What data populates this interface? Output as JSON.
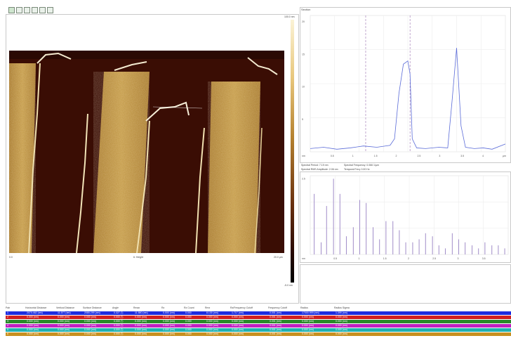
{
  "image_panel": {
    "axis_left": "0.0",
    "axis_center": "6: Height",
    "axis_right": "20.0 µm",
    "scale_top": "100.0 nm",
    "scale_bottom": "-5.0 nm"
  },
  "section_panel": {
    "title": "Section",
    "y_ticks": [
      "20",
      "15",
      "10",
      "5"
    ],
    "x_unit": "nm",
    "x_ticks": [
      "0.5",
      "1",
      "1.5",
      "2",
      "2.5",
      "3",
      "3.5",
      "4"
    ],
    "x_end": "µm"
  },
  "spectral_info": {
    "period": "Spectral Period: 7.19 nm",
    "rms": "Spectral RMS Amplitude: 2.06 nm",
    "frequency": "Spectral Frequency: 0.066 1/µm",
    "temporal": "Temporal Freq: 0.00 Hz"
  },
  "spectrum_panel": {
    "y_top": "2.5",
    "x_unit": "nm",
    "x_ticks": [
      "0.5",
      "1",
      "1.5",
      "2",
      "2.5",
      "3",
      "3.5"
    ]
  },
  "table": {
    "headers": [
      "Pair",
      "Horizontal Distance",
      "Vertical Distance",
      "Surface Distance",
      "Angle",
      "Rmax",
      "Rz",
      "Rz Count",
      "Rmx",
      "Rz/Frequency Cutoff",
      "Frequency Cutoff",
      "Radius",
      "Radius Sigma"
    ],
    "rows": [
      {
        "color": "#1c2ce0",
        "cells": [
          "1",
          "2070.462 (nm)",
          "11.577 (nm)",
          "2085.299 (nm)",
          "0.327 (°)",
          "11.580 (nm)",
          "0.000 (nm)",
          "0.000",
          "8.130 (nm)",
          "1.717 (nm)",
          "0.001 (nm)",
          "17000.999 (nm)",
          "1.399 (nm)"
        ]
      },
      {
        "color": "#d02020",
        "cells": [
          "2",
          "0.000 (nm)",
          "0.000 (nm)",
          "0.000 (nm)",
          "0.000 (°)",
          "0.000 (nm)",
          "0.000 (nm)",
          "0.000",
          "0.000 (nm)",
          "0.000 (nm)",
          "0.001 (nm)",
          "0.000 (nm)",
          "0.000 (nm)"
        ]
      },
      {
        "color": "#2a8a2a",
        "cells": [
          "3",
          "0.000 (nm)",
          "0.000 (nm)",
          "0.000 (nm)",
          "0.000 (°)",
          "0.000 (nm)",
          "0.000 (nm)",
          "0.000",
          "0.000 (nm)",
          "0.000 (nm)",
          "0.001 (nm)",
          "0.000 (nm)",
          "0.000 (nm)"
        ]
      },
      {
        "color": "#c020c0",
        "cells": [
          "4",
          "0.000 (nm)",
          "0.000 (nm)",
          "0.000 (nm)",
          "0.000 (°)",
          "0.000 (nm)",
          "0.000 (nm)",
          "0.000",
          "0.000 (nm)",
          "0.000 (nm)",
          "0.001 (nm)",
          "0.000 (nm)",
          "0.000 (nm)"
        ]
      },
      {
        "color": "#20b0b0",
        "cells": [
          "5",
          "0.000 (nm)",
          "0.000 (nm)",
          "0.000 (nm)",
          "0.000 (°)",
          "0.000 (nm)",
          "0.000 (nm)",
          "0.000",
          "0.000 (nm)",
          "0.000 (nm)",
          "0.001 (nm)",
          "0.000 (nm)",
          "0.000 (nm)"
        ]
      },
      {
        "color": "#c89020",
        "cells": [
          "6",
          "0.000 (nm)",
          "0.000 (nm)",
          "0.000 (nm)",
          "0.000 (°)",
          "0.000 (nm)",
          "0.000 (nm)",
          "0.000",
          "0.000 (nm)",
          "0.000 (nm)",
          "0.001 (nm)",
          "0.000 (nm)",
          "0.000 (nm)"
        ]
      }
    ]
  },
  "chart_data": [
    {
      "type": "line",
      "title": "Section",
      "xlabel": "",
      "ylabel": "",
      "xlim": [
        0,
        4.4
      ],
      "ylim": [
        0,
        21
      ],
      "x": [
        0,
        0.3,
        0.6,
        0.9,
        1.2,
        1.5,
        1.8,
        1.9,
        2.0,
        2.1,
        2.2,
        2.25,
        2.3,
        2.4,
        2.6,
        2.9,
        3.1,
        3.2,
        3.3,
        3.4,
        3.5,
        3.7,
        3.9,
        4.1,
        4.4
      ],
      "series": [
        {
          "values": [
            0.5,
            0.7,
            0.4,
            0.6,
            0.9,
            0.7,
            1.0,
            2.0,
            9.0,
            13.5,
            14.0,
            12.0,
            2.0,
            0.6,
            0.5,
            0.7,
            0.6,
            8.0,
            16.0,
            4.0,
            0.7,
            0.5,
            0.6,
            0.4,
            1.2
          ]
        }
      ],
      "markers_x": [
        1.25,
        2.25
      ],
      "grid": true
    },
    {
      "type": "bar",
      "title": "",
      "xlabel": "",
      "ylabel": "",
      "xlim": [
        0,
        4.0
      ],
      "ylim": [
        0,
        2.6
      ],
      "x": [
        0.08,
        0.22,
        0.33,
        0.47,
        0.6,
        0.73,
        0.87,
        1.0,
        1.13,
        1.27,
        1.4,
        1.53,
        1.67,
        1.8,
        1.93,
        2.07,
        2.2,
        2.33,
        2.47,
        2.6,
        2.73,
        2.87,
        3.0,
        3.13,
        3.27,
        3.4,
        3.53,
        3.67,
        3.8,
        3.93
      ],
      "series": [
        {
          "values": [
            2.0,
            0.4,
            1.6,
            2.5,
            2.0,
            0.6,
            0.9,
            1.8,
            1.7,
            0.9,
            0.5,
            1.1,
            1.1,
            0.8,
            0.4,
            0.4,
            0.5,
            0.7,
            0.6,
            0.3,
            0.2,
            0.7,
            0.5,
            0.4,
            0.3,
            0.2,
            0.4,
            0.3,
            0.3,
            0.2
          ]
        }
      ],
      "grid": true
    }
  ]
}
